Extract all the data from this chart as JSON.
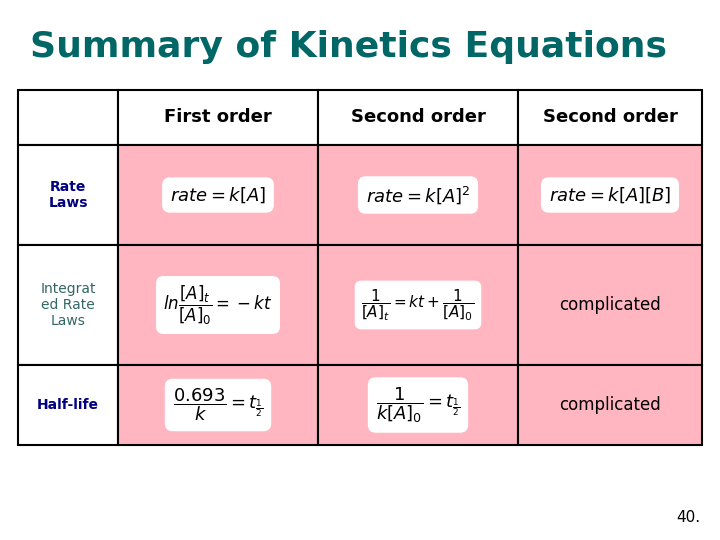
{
  "title": "Summary of Kinetics Equations",
  "title_color": "#006666",
  "title_fontsize": 26,
  "background_color": "#ffffff",
  "table_bg_pink": "#ffb6c1",
  "table_bg_white": "#ffffff",
  "table_border_color": "#000000",
  "row_labels": [
    "Rate\nLaws",
    "Integrat\ned Rate\nLaws",
    "Half-life"
  ],
  "col_labels": [
    "First order",
    "Second order",
    "Second order"
  ],
  "row_label_color_0": "#000080",
  "row_label_color_1": "#336666",
  "row_label_color_2": "#000080",
  "col_label_fontsize": 13,
  "row_label_fontsize": 10,
  "complicated_fontsize": 12,
  "page_number": "40.",
  "formulas": {
    "rate_first": "$rate = k[A]$",
    "rate_second_A2": "$rate = k[A]^2$",
    "rate_second_AB": "$rate = k[A][B]$",
    "int_first": "$ln\\dfrac{[A]_t}{[A]_0} = -kt$",
    "int_second": "$\\dfrac{1}{[A]_t} = kt + \\dfrac{1}{[A]_0}$",
    "half_first": "$\\dfrac{0.693}{k} = t_{\\frac{1}{2}}$",
    "half_second": "$\\dfrac{1}{k[A]_0} = t_{\\frac{1}{2}}$"
  }
}
